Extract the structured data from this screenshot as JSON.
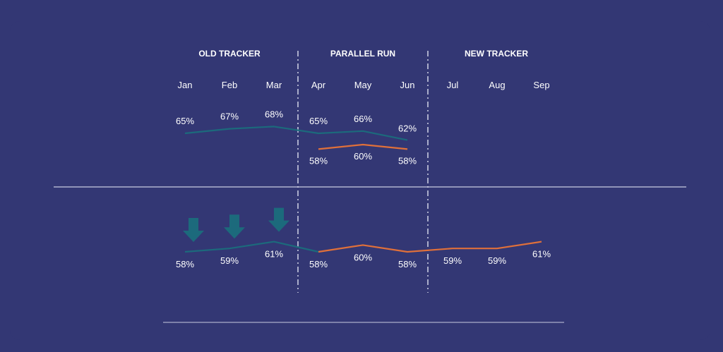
{
  "chart_data": {
    "type": "line",
    "phases": [
      {
        "label": "OLD TRACKER",
        "months": [
          "Jan",
          "Feb",
          "Mar"
        ]
      },
      {
        "label": "PARALLEL RUN",
        "months": [
          "Apr",
          "May",
          "Jun"
        ]
      },
      {
        "label": "NEW TRACKER",
        "months": [
          "Jul",
          "Aug",
          "Sep"
        ]
      }
    ],
    "categories": [
      "Jan",
      "Feb",
      "Mar",
      "Apr",
      "May",
      "Jun",
      "Jul",
      "Aug",
      "Sep"
    ],
    "panels": [
      {
        "id": "top",
        "series": [
          {
            "tracker": "old",
            "color": "#1c6a7c",
            "values": [
              65,
              67,
              68,
              65,
              66,
              62,
              null,
              null,
              null
            ],
            "labels": [
              "65%",
              "67%",
              "68%",
              "65%",
              "66%",
              "62%",
              null,
              null,
              null
            ]
          },
          {
            "tracker": "new",
            "color": "#e0703a",
            "values": [
              null,
              null,
              null,
              58,
              60,
              58,
              null,
              null,
              null
            ],
            "labels": [
              null,
              null,
              null,
              "58%",
              "60%",
              "58%",
              null,
              null,
              null
            ]
          }
        ]
      },
      {
        "id": "bottom",
        "series": [
          {
            "tracker": "adjusted-old",
            "color": "#1c6a7c",
            "values": [
              58,
              59,
              61,
              58,
              null,
              null,
              null,
              null,
              null
            ],
            "labels": [
              "58%",
              "59%",
              "61%",
              null,
              null,
              null,
              null,
              null,
              null
            ]
          },
          {
            "tracker": "new",
            "color": "#e0703a",
            "values": [
              null,
              null,
              null,
              58,
              60,
              58,
              59,
              59,
              61
            ],
            "labels": [
              null,
              null,
              null,
              "58%",
              "60%",
              "58%",
              "59%",
              "59%",
              "61%"
            ]
          }
        ]
      }
    ],
    "down_arrows": [
      "Jan",
      "Feb",
      "Mar"
    ],
    "arrow_color": "#1c6a7c",
    "line_color_light": "#c9cbe0"
  }
}
